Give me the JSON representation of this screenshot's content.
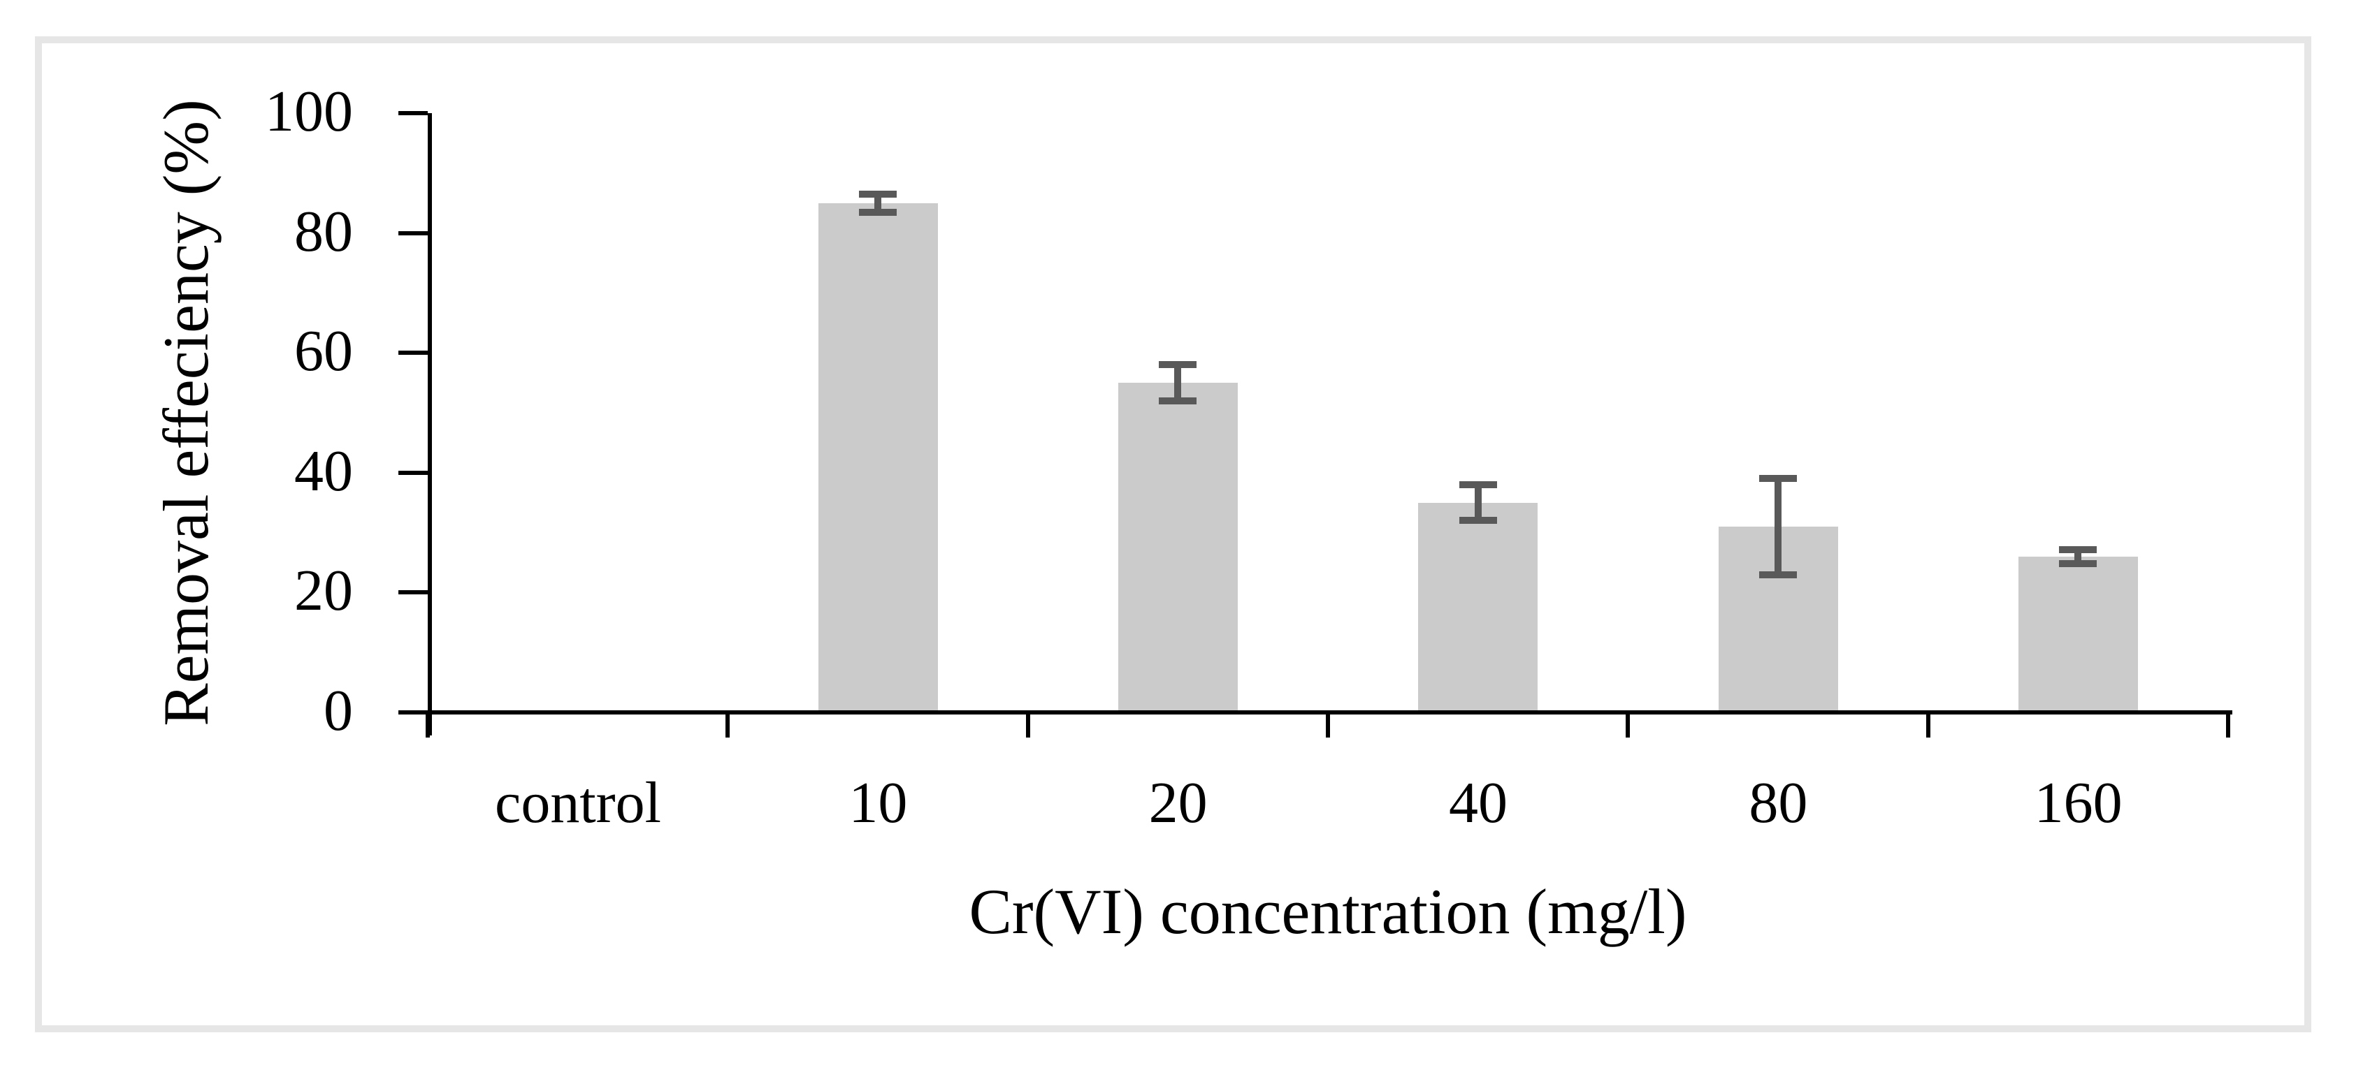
{
  "figure": {
    "background_color": "#ffffff",
    "border_color": "#e6e6e6"
  },
  "chart_data": {
    "type": "bar",
    "title": "",
    "xlabel": "Cr(VI) concentration (mg/l)",
    "ylabel": "Removal effeciency (%)",
    "categories": [
      "control",
      "10",
      "20",
      "40",
      "80",
      "160"
    ],
    "values": [
      0,
      85,
      55,
      35,
      31,
      26
    ],
    "error_bars": [
      0,
      1.5,
      3,
      3,
      8,
      1.2
    ],
    "y_ticks": [
      0,
      20,
      40,
      60,
      80,
      100
    ],
    "ylim": [
      0,
      100
    ],
    "grid": false,
    "legend": false,
    "bar_color": "#cbcbcb",
    "error_bar_color": "#595959",
    "axis_color": "#000000",
    "text_color": "#000000"
  }
}
